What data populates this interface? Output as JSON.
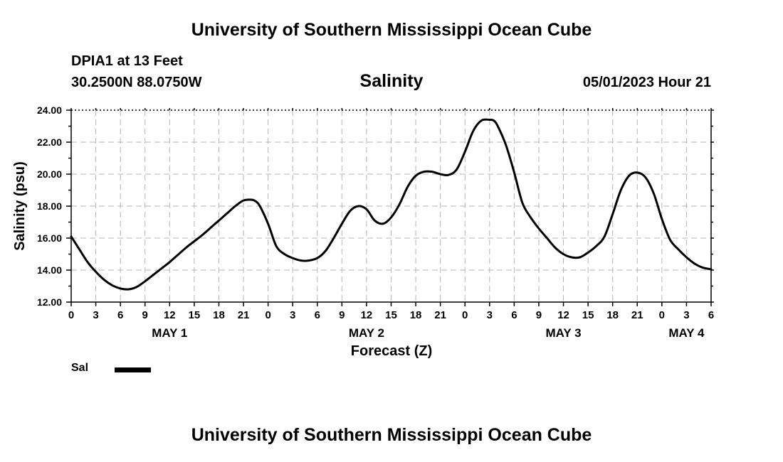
{
  "header": {
    "org_title": "University of Southern Mississippi Ocean Cube",
    "station": "DPIA1 at 13 Feet",
    "coords": "30.2500N  88.0750W",
    "run_time": "05/01/2023 Hour 21"
  },
  "footer": {
    "org_title": "University of Southern Mississippi Ocean Cube"
  },
  "chart_data": {
    "type": "line",
    "title": "Salinity",
    "xlabel": "Forecast (Z)",
    "ylabel": "Salinity (psu)",
    "ylim": [
      12,
      24
    ],
    "xlim": [
      0,
      78
    ],
    "x_unit": "hours from 00Z May 1",
    "grid": true,
    "x_ticks": [
      {
        "hour": 0,
        "label": "0"
      },
      {
        "hour": 3,
        "label": "3"
      },
      {
        "hour": 6,
        "label": "6"
      },
      {
        "hour": 9,
        "label": "9"
      },
      {
        "hour": 12,
        "label": "12"
      },
      {
        "hour": 15,
        "label": "15"
      },
      {
        "hour": 18,
        "label": "18"
      },
      {
        "hour": 21,
        "label": "21"
      },
      {
        "hour": 24,
        "label": "0"
      },
      {
        "hour": 27,
        "label": "3"
      },
      {
        "hour": 30,
        "label": "6"
      },
      {
        "hour": 33,
        "label": "9"
      },
      {
        "hour": 36,
        "label": "12"
      },
      {
        "hour": 39,
        "label": "15"
      },
      {
        "hour": 42,
        "label": "18"
      },
      {
        "hour": 45,
        "label": "21"
      },
      {
        "hour": 48,
        "label": "0"
      },
      {
        "hour": 51,
        "label": "3"
      },
      {
        "hour": 54,
        "label": "6"
      },
      {
        "hour": 57,
        "label": "9"
      },
      {
        "hour": 60,
        "label": "12"
      },
      {
        "hour": 63,
        "label": "15"
      },
      {
        "hour": 66,
        "label": "18"
      },
      {
        "hour": 69,
        "label": "21"
      },
      {
        "hour": 72,
        "label": "0"
      },
      {
        "hour": 75,
        "label": "3"
      },
      {
        "hour": 78,
        "label": "6"
      }
    ],
    "day_labels": [
      {
        "hour": 12,
        "label": "MAY 1"
      },
      {
        "hour": 36,
        "label": "MAY 2"
      },
      {
        "hour": 60,
        "label": "MAY 3"
      },
      {
        "hour": 75,
        "label": "MAY 4"
      }
    ],
    "y_ticks": [
      "12.00",
      "14.00",
      "16.00",
      "18.00",
      "20.00",
      "22.00",
      "24.00"
    ],
    "series": [
      {
        "name": "Sal",
        "color": "#000000",
        "x": [
          0,
          1,
          2,
          3,
          4,
          5,
          6,
          7,
          8,
          9,
          10,
          11,
          12,
          13,
          14,
          15,
          16,
          17,
          18,
          19,
          20,
          21,
          22,
          22.5,
          23,
          24,
          25,
          26,
          27,
          28,
          29,
          30,
          31,
          32,
          33,
          34,
          35,
          36,
          37,
          38,
          39,
          40,
          41,
          42,
          43,
          44,
          45,
          46,
          47,
          48,
          49,
          50,
          51,
          51.5,
          52,
          53,
          54,
          55,
          56,
          57,
          58,
          59,
          60,
          61,
          62,
          63,
          64,
          65,
          66,
          67,
          68,
          69,
          70,
          71,
          72,
          73,
          74,
          75,
          76,
          77,
          78
        ],
        "y": [
          16.1,
          15.3,
          14.5,
          13.9,
          13.4,
          13.05,
          12.85,
          12.8,
          12.95,
          13.3,
          13.7,
          14.1,
          14.5,
          14.95,
          15.4,
          15.8,
          16.2,
          16.65,
          17.1,
          17.55,
          18.0,
          18.35,
          18.4,
          18.3,
          18.0,
          16.9,
          15.5,
          15.0,
          14.75,
          14.6,
          14.6,
          14.75,
          15.2,
          16.0,
          16.9,
          17.7,
          18.0,
          17.8,
          17.1,
          16.9,
          17.3,
          18.1,
          19.2,
          19.9,
          20.15,
          20.15,
          20.0,
          19.95,
          20.3,
          21.4,
          22.7,
          23.35,
          23.4,
          23.35,
          23.0,
          21.8,
          20.1,
          18.2,
          17.3,
          16.6,
          16.0,
          15.4,
          15.0,
          14.8,
          14.8,
          15.1,
          15.5,
          16.1,
          17.5,
          19.0,
          19.9,
          20.1,
          19.8,
          18.8,
          17.2,
          15.9,
          15.3,
          14.8,
          14.4,
          14.15,
          14.05
        ]
      }
    ],
    "legend": {
      "position": "bottom-left",
      "entries": [
        "Sal"
      ]
    }
  }
}
